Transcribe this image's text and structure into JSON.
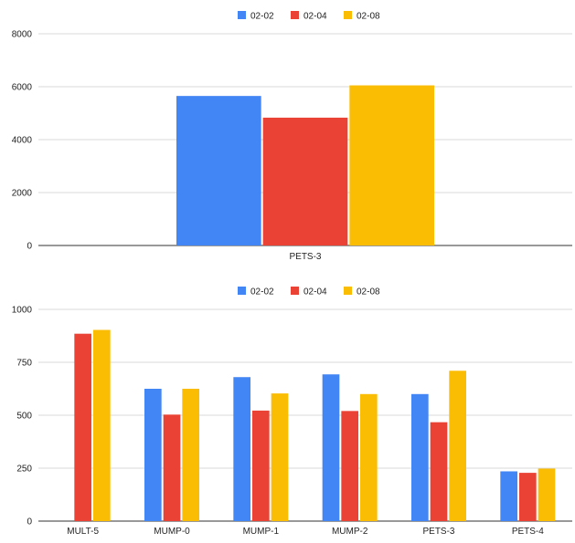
{
  "chart_data": [
    {
      "type": "bar",
      "categories": [
        "PETS-3"
      ],
      "series": [
        {
          "name": "02-02",
          "color": "#4285F4",
          "values": [
            5650
          ]
        },
        {
          "name": "02-04",
          "color": "#EA4335",
          "values": [
            4830
          ]
        },
        {
          "name": "02-08",
          "color": "#FBBC04",
          "values": [
            6050
          ]
        }
      ],
      "yticks": [
        "0",
        "2000",
        "4000",
        "6000",
        "8000"
      ],
      "ylim": [
        0,
        8000
      ],
      "grid": true,
      "legend": "top"
    },
    {
      "type": "bar",
      "categories": [
        "MULT-5",
        "MUMP-0",
        "MUMP-1",
        "MUMP-2",
        "PETS-3",
        "PETS-4"
      ],
      "series": [
        {
          "name": "02-02",
          "color": "#4285F4",
          "values": [
            null,
            625,
            680,
            693,
            600,
            235
          ]
        },
        {
          "name": "02-04",
          "color": "#EA4335",
          "values": [
            885,
            503,
            522,
            520,
            467,
            228
          ]
        },
        {
          "name": "02-08",
          "color": "#FBBC04",
          "values": [
            903,
            625,
            603,
            600,
            710,
            248
          ]
        }
      ],
      "yticks": [
        "0",
        "250",
        "500",
        "750",
        "1000"
      ],
      "ylim": [
        0,
        1000
      ],
      "grid": true,
      "legend": "top"
    }
  ]
}
